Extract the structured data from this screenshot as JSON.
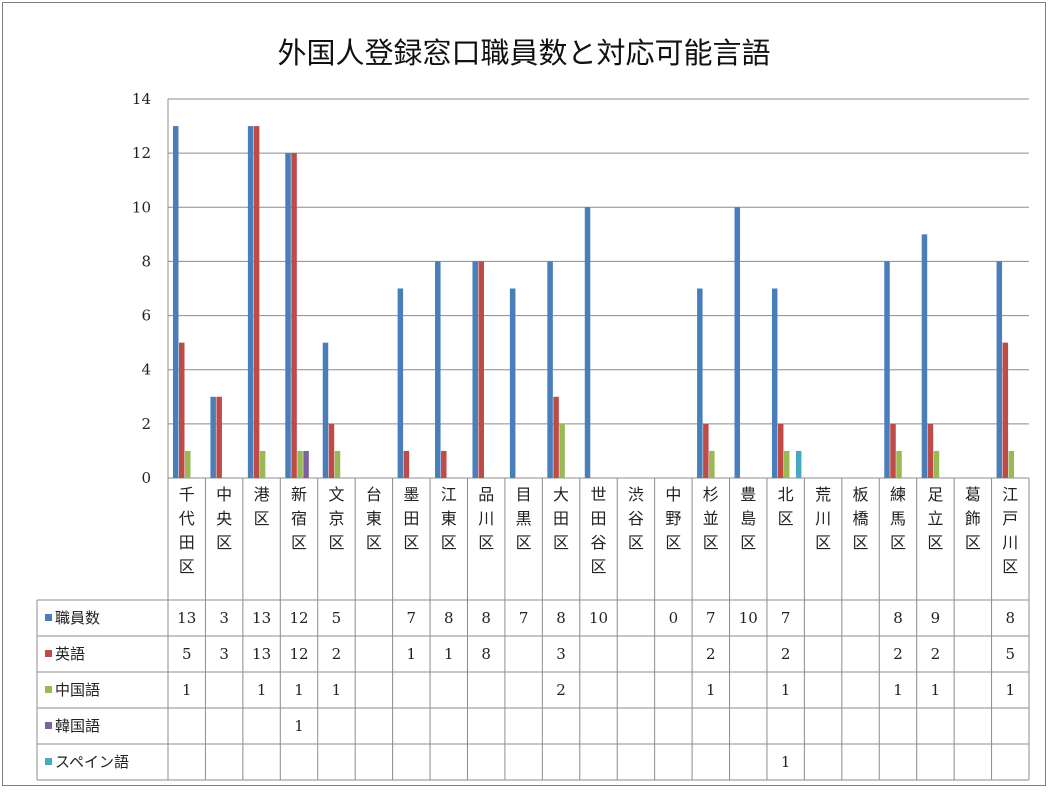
{
  "chart_data": {
    "type": "bar",
    "title": "外国人登録窓口職員数と対応可能言語",
    "ylim": [
      0,
      14
    ],
    "yticks": [
      0,
      2,
      4,
      6,
      8,
      10,
      12,
      14
    ],
    "grid": true,
    "legend": "table-bottom",
    "categories": [
      "千代田区",
      "中央区",
      "港区",
      "新宿区",
      "文京区",
      "台東区",
      "墨田区",
      "江東区",
      "品川区",
      "目黒区",
      "大田区",
      "世田谷区",
      "渋谷区",
      "中野区",
      "杉並区",
      "豊島区",
      "北区",
      "荒川区",
      "板橋区",
      "練馬区",
      "足立区",
      "葛飾区",
      "江戸川区"
    ],
    "series": [
      {
        "name": "職員数",
        "color": "#4a7ebb",
        "values": [
          13,
          3,
          13,
          12,
          5,
          null,
          7,
          8,
          8,
          7,
          8,
          10,
          null,
          0,
          7,
          10,
          7,
          null,
          null,
          8,
          9,
          null,
          8
        ]
      },
      {
        "name": "英語",
        "color": "#be4b48",
        "values": [
          5,
          3,
          13,
          12,
          2,
          null,
          1,
          1,
          8,
          null,
          3,
          null,
          null,
          null,
          2,
          null,
          2,
          null,
          null,
          2,
          2,
          null,
          5
        ]
      },
      {
        "name": "中国語",
        "color": "#98b954",
        "values": [
          1,
          null,
          1,
          1,
          1,
          null,
          null,
          null,
          null,
          null,
          2,
          null,
          null,
          null,
          1,
          null,
          1,
          null,
          null,
          1,
          1,
          null,
          1
        ]
      },
      {
        "name": "韓国語",
        "color": "#7d60a0",
        "values": [
          null,
          null,
          null,
          1,
          null,
          null,
          null,
          null,
          null,
          null,
          null,
          null,
          null,
          null,
          null,
          null,
          null,
          null,
          null,
          null,
          null,
          null,
          null
        ]
      },
      {
        "name": "スペイン語",
        "color": "#46aac5",
        "values": [
          null,
          null,
          null,
          null,
          null,
          null,
          null,
          null,
          null,
          null,
          null,
          null,
          null,
          null,
          null,
          null,
          1,
          null,
          null,
          null,
          null,
          null,
          null
        ]
      }
    ]
  }
}
